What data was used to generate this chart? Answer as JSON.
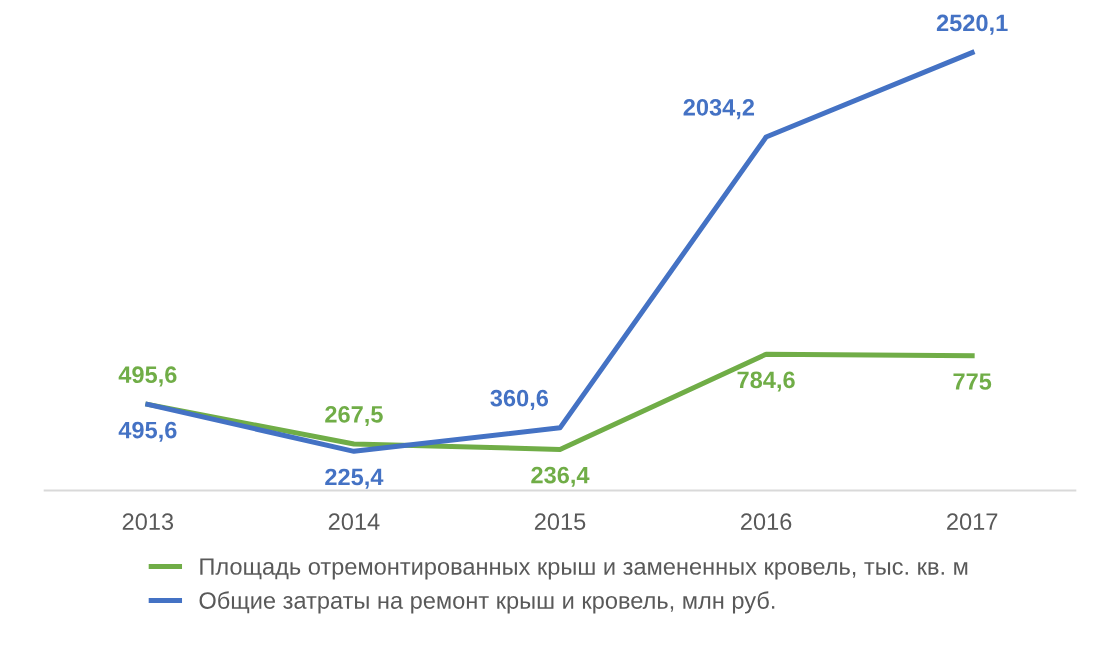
{
  "chart_data": {
    "type": "line",
    "categories": [
      "2013",
      "2014",
      "2015",
      "2016",
      "2017"
    ],
    "series": [
      {
        "name": "Площадь отремонтированных крыш и замененных кровель, тыс. кв. м",
        "color": "#70ad47",
        "values": [
          495.6,
          267.5,
          236.4,
          784.6,
          775
        ],
        "value_labels": [
          "495,6",
          "267,5",
          "236,4",
          "784,6",
          "775"
        ]
      },
      {
        "name": "Общие затраты на ремонт крыш и кровель, млн руб.",
        "color": "#4472c4",
        "values": [
          495.6,
          225.4,
          360.6,
          2034.2,
          2520.1
        ],
        "value_labels": [
          "495,6",
          "225,4",
          "360,6",
          "2034,2",
          "2520,1"
        ]
      }
    ],
    "legend": "bottom",
    "grid": false,
    "marker": "none",
    "line_style": "solid"
  }
}
